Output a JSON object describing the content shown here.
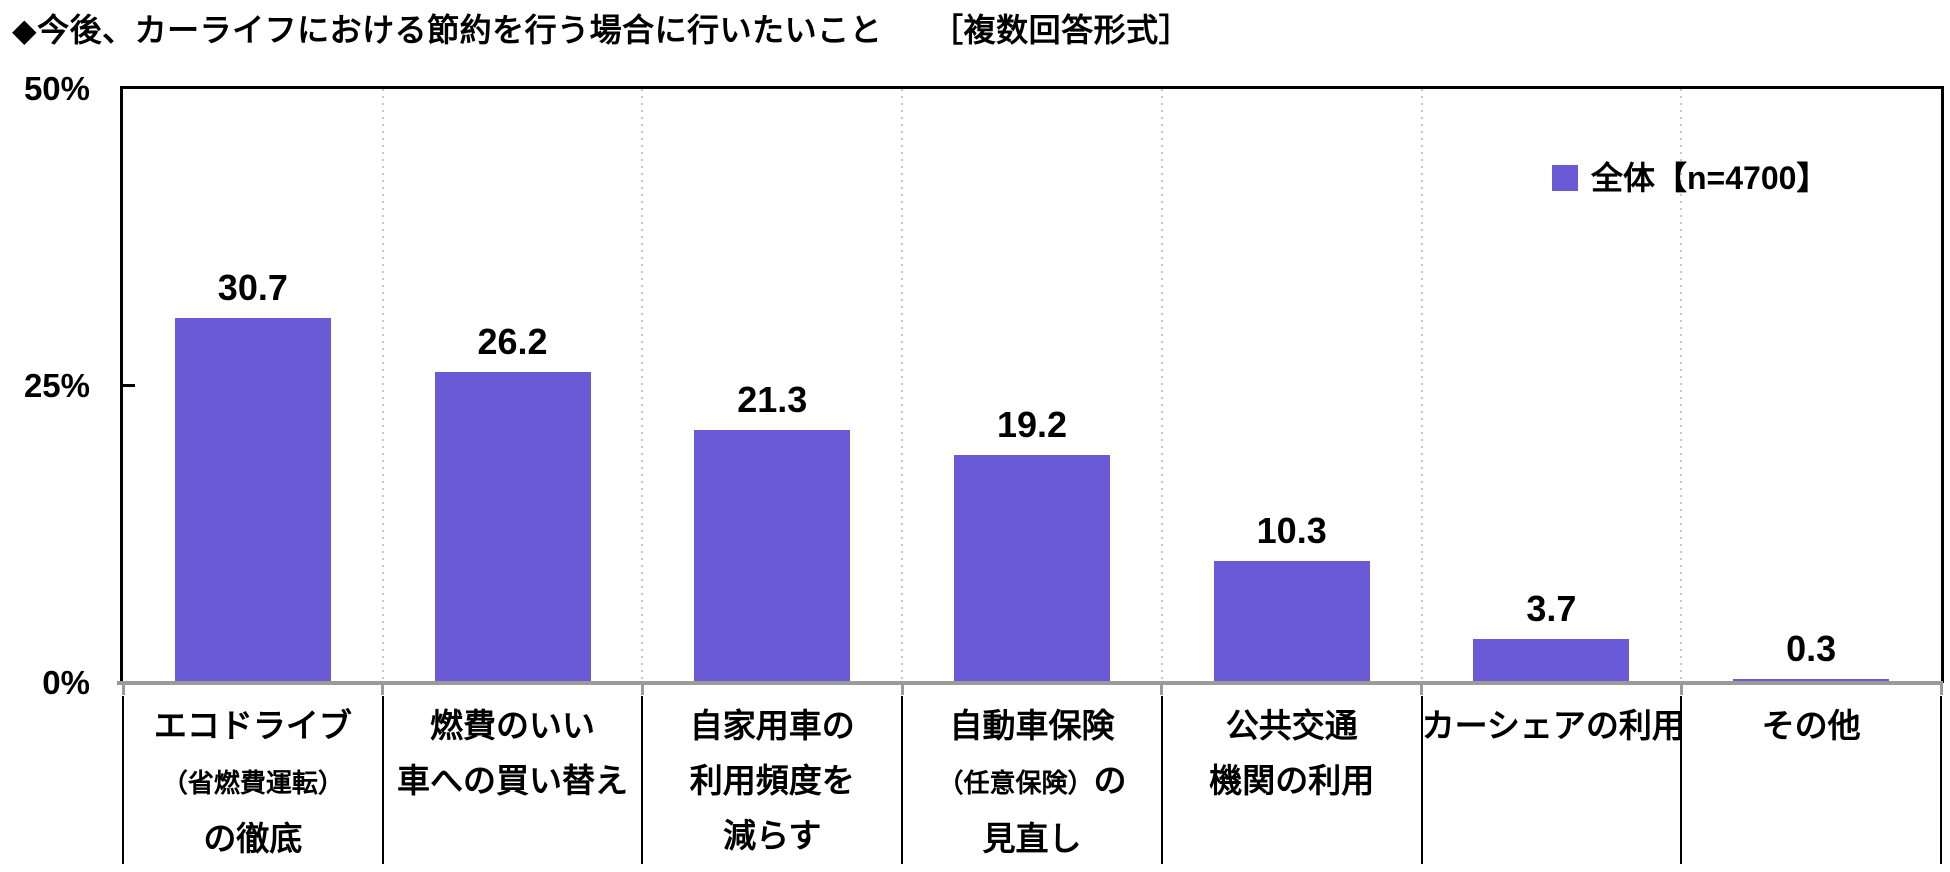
{
  "page": {
    "background": "#ffffff"
  },
  "header": {
    "title": "◆今後、カーライフにおける節約を行う場合に行いたいこと　　［複数回答形式］"
  },
  "legend": {
    "marker": "square",
    "marker_color": "#6A5AD6",
    "label": "全体【n=4700】"
  },
  "chart_data": {
    "type": "bar",
    "title": "今後、カーライフにおける節約を行う場合に行いたいこと",
    "note": "複数回答形式",
    "categories": [
      "エコドライブ（省燃費運転）の徹底",
      "燃費のいい車への買い替え",
      "自家用車の利用頻度を減らす",
      "自動車保険（任意保険）の見直し",
      "公共交通機関の利用",
      "カーシェアの利用",
      "その他"
    ],
    "category_lines": [
      [
        [
          {
            "text": "エコドライブ"
          }
        ],
        [
          {
            "text": "（省燃費運転）",
            "small": true
          }
        ],
        [
          {
            "text": "の徹底"
          }
        ]
      ],
      [
        [
          {
            "text": "燃費のいい"
          }
        ],
        [
          {
            "text": "車への買い替え"
          }
        ]
      ],
      [
        [
          {
            "text": "自家用車の"
          }
        ],
        [
          {
            "text": "利用頻度を"
          }
        ],
        [
          {
            "text": "減らす"
          }
        ]
      ],
      [
        [
          {
            "text": "自動車保険"
          }
        ],
        [
          {
            "text": "（任意保険）",
            "small": true
          },
          {
            "text": "の"
          }
        ],
        [
          {
            "text": "見直し"
          }
        ]
      ],
      [
        [
          {
            "text": "公共交通"
          }
        ],
        [
          {
            "text": "機関の利用"
          }
        ]
      ],
      [
        [
          {
            "text": "カーシェアの利用"
          }
        ]
      ],
      [
        [
          {
            "text": "その他"
          }
        ]
      ]
    ],
    "series": [
      {
        "name": "全体【n=4700】",
        "values": [
          30.7,
          26.2,
          21.3,
          19.2,
          10.3,
          3.7,
          0.3
        ]
      }
    ],
    "value_labels": [
      "30.7",
      "26.2",
      "21.3",
      "19.2",
      "10.3",
      "3.7",
      "0.3"
    ],
    "xlabel": "",
    "ylabel": "",
    "ylim": [
      0,
      50
    ],
    "yticks": [
      {
        "value": 50,
        "label": "50%"
      },
      {
        "value": 25,
        "label": "25%"
      },
      {
        "value": 0,
        "label": "0%"
      }
    ],
    "bar_color": "#6A5AD6",
    "axis_line_color": "#9a9a9a",
    "frame_color": "#000000",
    "gridline_style": "dotted vertical lines at category boundaries",
    "gridline_color": "#c6c6c6",
    "grid": "vertical-only",
    "legend_position": "top-right-inside",
    "value_labels_shown": true
  }
}
